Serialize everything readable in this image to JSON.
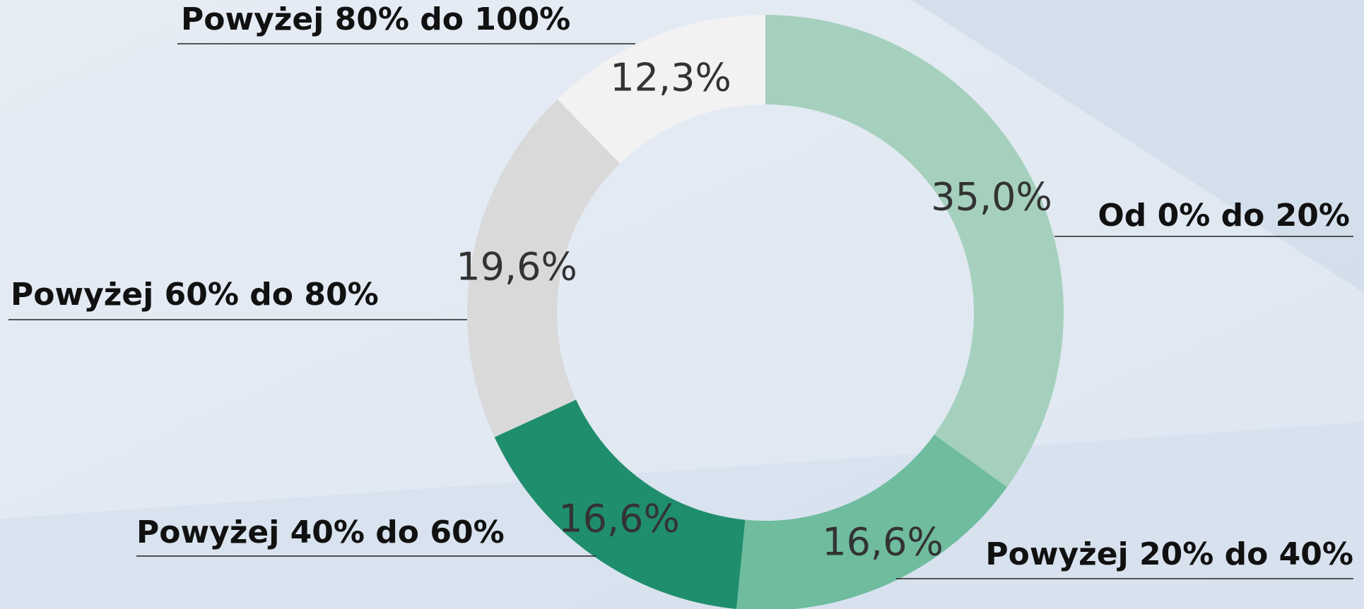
{
  "chart_data": {
    "type": "pie",
    "donut": true,
    "categories": [
      "Od 0% do 20%",
      "Powyżej 20% do 40%",
      "Powyżej 40% do 60%",
      "Powyżej 60% do 80%",
      "Powyżej 80% do 100%"
    ],
    "values": [
      35.0,
      16.6,
      16.6,
      19.6,
      12.3
    ],
    "value_labels": [
      "35,0%",
      "16,6%",
      "16,6%",
      "19,6%",
      "12,3%"
    ],
    "colors": [
      "#a5d0bd",
      "#6fbc9f",
      "#1f8e6d",
      "#d9d9d9",
      "#f2f2f2"
    ]
  }
}
